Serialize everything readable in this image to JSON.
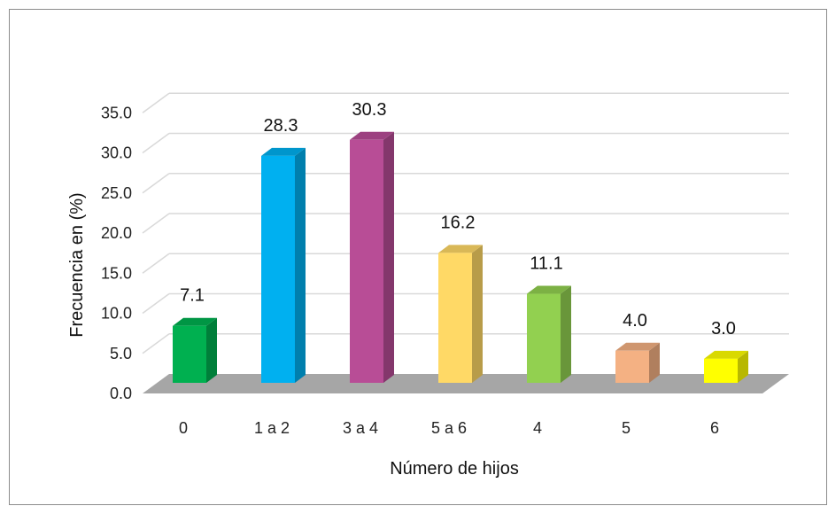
{
  "chart_data": {
    "type": "bar",
    "title": "",
    "xlabel": "Número de hijos",
    "ylabel": "Frecuencia en (%)",
    "categories": [
      "0",
      "1 a 2",
      "3 a 4",
      "5 a 6",
      "4",
      "5",
      "6"
    ],
    "values": [
      7.1,
      28.3,
      30.3,
      16.2,
      11.1,
      4.0,
      3.0
    ],
    "value_labels": [
      "7.1",
      "28.3",
      "30.3",
      "16.2",
      "11.1",
      "4.0",
      "3.0"
    ],
    "yticks": [
      "0.0",
      "5.0",
      "10.0",
      "15.0",
      "20.0",
      "25.0",
      "30.0",
      "35.0"
    ],
    "ylim": [
      0,
      35
    ],
    "grid": true,
    "legend": "none",
    "style": "3d-columns",
    "colors": [
      "#00b050",
      "#00b0f0",
      "#b84d96",
      "#ffd966",
      "#92d050",
      "#f4b183",
      "#ffff00"
    ],
    "floor_color": "#a6a6a6",
    "grid_color": "#d9d9d9"
  }
}
